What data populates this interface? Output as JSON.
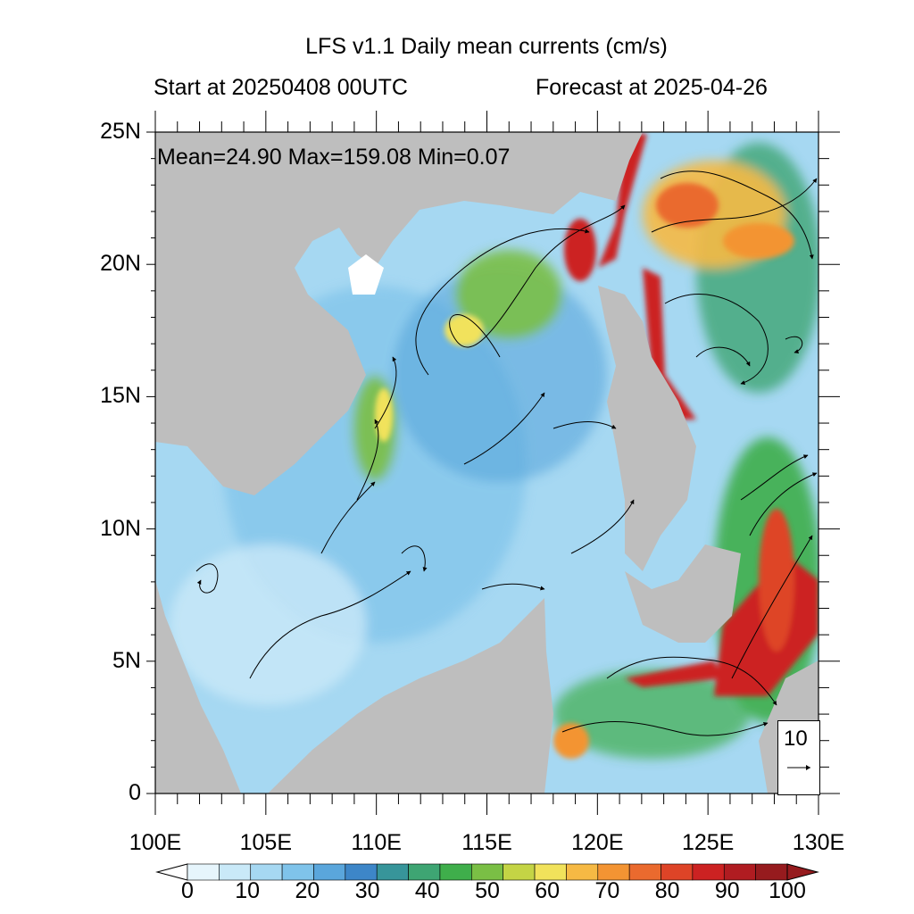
{
  "title": "LFS v1.1 Daily mean currents (cm/s)",
  "start_label": "Start at 20250408 00UTC",
  "forecast_label": "Forecast at 2025-04-26",
  "stats_label": "Mean=24.90  Max=159.08  Min=0.07",
  "lat_labels": [
    "25N",
    "20N",
    "15N",
    "10N",
    "5N",
    "0"
  ],
  "lon_labels": [
    "100E",
    "105E",
    "110E",
    "115E",
    "120E",
    "125E",
    "130E"
  ],
  "reference_vector": "10",
  "colorbar": {
    "labels": [
      "0",
      "10",
      "20",
      "30",
      "40",
      "50",
      "60",
      "70",
      "80",
      "90",
      "100"
    ],
    "colors": [
      "#e6f5fc",
      "#c9e9f8",
      "#a6d8f2",
      "#7fc3ea",
      "#5aa6dc",
      "#3d86c8",
      "#37959a",
      "#3ea573",
      "#3fae4b",
      "#7abf45",
      "#c4d445",
      "#f1e25b",
      "#f6b944",
      "#f39433",
      "#ea6a2e",
      "#de4427",
      "#cc2222",
      "#b01c21",
      "#961b1e"
    ],
    "over_color": "#961b1e",
    "under_color": "#ffffff"
  },
  "colors": {
    "land": "#bebebe",
    "sea_low": "#a6d8f2",
    "strong_current": "#cc2222"
  }
}
